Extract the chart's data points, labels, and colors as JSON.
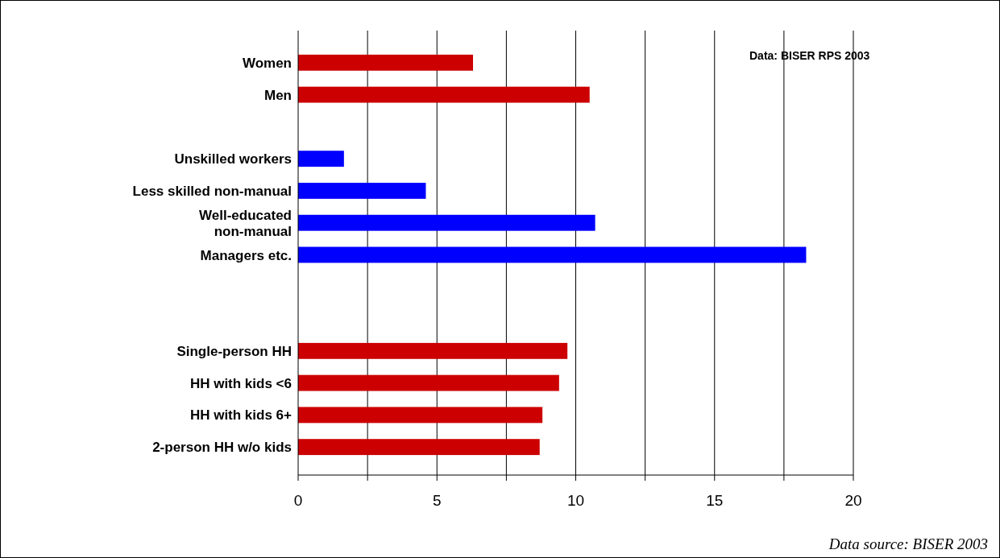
{
  "chart_data": {
    "type": "bar",
    "orientation": "horizontal",
    "categories": [
      "Women",
      "Men",
      null,
      "Unskilled workers",
      "Less skilled non-manual",
      "Well-educated\nnon-manual",
      "Managers etc.",
      null,
      null,
      "Single-person HH",
      "HH with kids <6",
      "HH with kids 6+",
      "2-person HH w/o kids"
    ],
    "values": [
      6.3,
      10.5,
      null,
      1.65,
      4.6,
      10.7,
      18.3,
      null,
      null,
      9.7,
      9.4,
      8.8,
      8.7
    ],
    "colors": [
      "#cc0000",
      "#cc0000",
      null,
      "#0000ff",
      "#0000ff",
      "#0000ff",
      "#0000ff",
      null,
      null,
      "#cc0000",
      "#cc0000",
      "#cc0000",
      "#cc0000"
    ],
    "xlim": [
      0,
      20
    ],
    "xticks": [
      0,
      {
        "value": 2.5,
        "label": null
      },
      5,
      {
        "value": 7.5,
        "label": null
      },
      10,
      {
        "value": 12.5,
        "label": null
      },
      15,
      {
        "value": 17.5,
        "label": null
      },
      20
    ],
    "grid": "x",
    "annotations": [
      "Data: BISER RPS 2003",
      "Data source: BISER 2003"
    ]
  }
}
